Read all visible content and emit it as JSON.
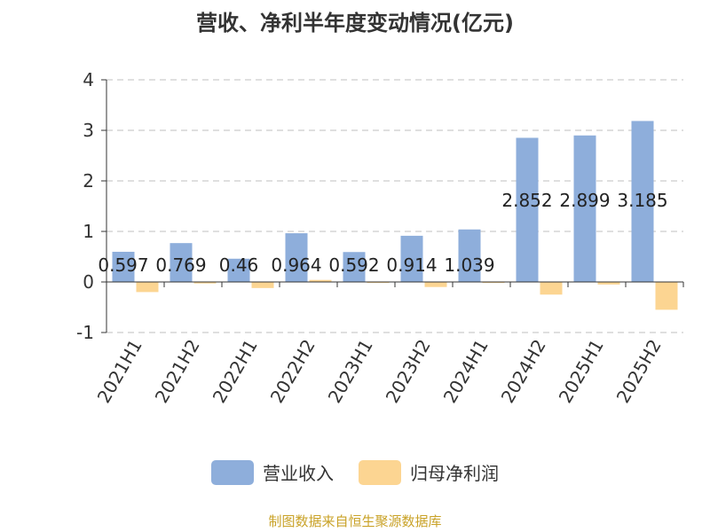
{
  "title": "营收、净利半年度变动情况(亿元)",
  "source": "制图数据来自恒生聚源数据库",
  "chart_data": {
    "type": "bar",
    "categories": [
      "2021H1",
      "2021H2",
      "2022H1",
      "2022H2",
      "2023H1",
      "2023H2",
      "2024H1",
      "2024H2",
      "2025H1",
      "2025H2"
    ],
    "series": [
      {
        "name": "营业收入",
        "color": "#8eaedb",
        "values": [
          0.597,
          0.769,
          0.46,
          0.964,
          0.592,
          0.914,
          1.039,
          2.852,
          2.899,
          3.185
        ],
        "labels": [
          "0.597",
          "0.769",
          "0.46",
          "0.964",
          "0.592",
          "0.914",
          "1.039",
          "2.852",
          "2.899",
          "3.185"
        ]
      },
      {
        "name": "归母净利润",
        "color": "#fcd592",
        "values": [
          -0.2,
          -0.03,
          -0.12,
          0.04,
          -0.02,
          -0.1,
          -0.02,
          -0.25,
          -0.05,
          -0.55
        ]
      }
    ],
    "ylim": [
      -1,
      4
    ],
    "yticks": [
      "-1",
      "0",
      "1",
      "2",
      "3",
      "4"
    ],
    "grid": true,
    "legend_position": "bottom"
  }
}
